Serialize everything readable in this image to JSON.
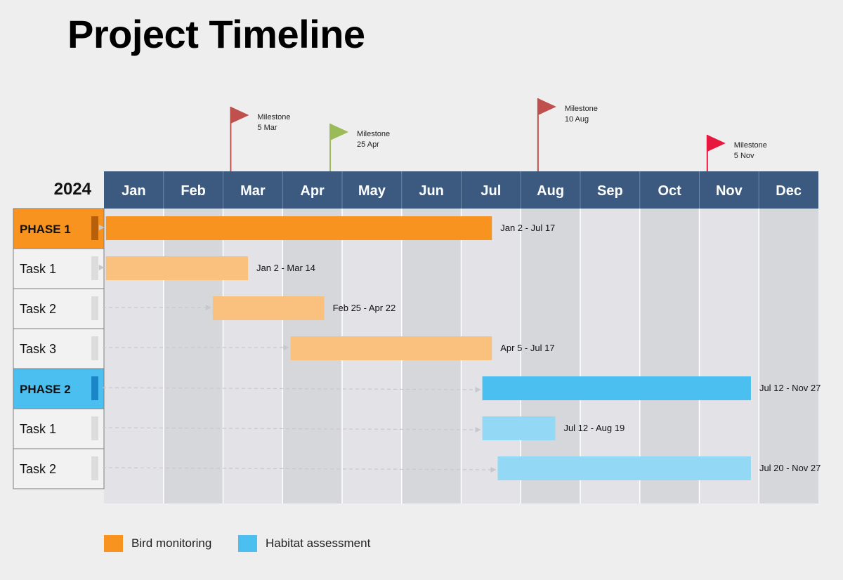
{
  "title": "Project Timeline",
  "year": "2024",
  "colors": {
    "header_bg": "#3c5a80",
    "header_text": "#ffffff",
    "phase1": "#f7931e",
    "phase1_task": "#fac07e",
    "phase1_tab": "#b85f0a",
    "phase2": "#4bbfef",
    "phase2_task": "#93d9f5",
    "phase2_tab": "#1b86c7",
    "col_light": "#e3e3e7",
    "col_dark": "#d6d7db"
  },
  "chart_data": {
    "type": "gantt",
    "title": "Project Timeline",
    "year": "2024",
    "months": [
      "Jan",
      "Feb",
      "Mar",
      "Apr",
      "May",
      "Jun",
      "Jul",
      "Aug",
      "Sep",
      "Oct",
      "Nov",
      "Dec"
    ],
    "rows": [
      {
        "label": "PHASE 1",
        "kind": "phase",
        "group": "phase1",
        "start": "2024-01-02",
        "end": "2024-07-17",
        "range_label": "Jan 2 - Jul 17"
      },
      {
        "label": "Task 1",
        "kind": "task",
        "group": "phase1",
        "start": "2024-01-02",
        "end": "2024-03-14",
        "range_label": "Jan 2 - Mar 14"
      },
      {
        "label": "Task 2",
        "kind": "task",
        "group": "phase1",
        "start": "2024-02-25",
        "end": "2024-04-22",
        "range_label": "Feb 25 - Apr 22"
      },
      {
        "label": "Task 3",
        "kind": "task",
        "group": "phase1",
        "start": "2024-04-05",
        "end": "2024-07-17",
        "range_label": "Apr 5 - Jul 17"
      },
      {
        "label": "PHASE 2",
        "kind": "phase",
        "group": "phase2",
        "start": "2024-07-12",
        "end": "2024-11-27",
        "range_label": "Jul 12 - Nov 27"
      },
      {
        "label": "Task 1",
        "kind": "task",
        "group": "phase2",
        "start": "2024-07-12",
        "end": "2024-08-19",
        "range_label": "Jul 12 - Aug 19"
      },
      {
        "label": "Task 2",
        "kind": "task",
        "group": "phase2",
        "start": "2024-07-20",
        "end": "2024-11-27",
        "range_label": "Jul 20 - Nov 27"
      }
    ],
    "milestones": [
      {
        "label": "Milestone",
        "date_label": "5 Mar",
        "date": "2024-03-05",
        "color": "#c0504d"
      },
      {
        "label": "Milestone",
        "date_label": "25 Apr",
        "date": "2024-04-25",
        "color": "#9bbb59"
      },
      {
        "label": "Milestone",
        "date_label": "10 Aug",
        "date": "2024-08-10",
        "color": "#c0504d"
      },
      {
        "label": "Milestone",
        "date_label": "5 Nov",
        "date": "2024-11-05",
        "color": "#e8173e"
      }
    ],
    "legend": [
      {
        "label": "Bird monitoring",
        "color": "#f7931e"
      },
      {
        "label": "Habitat assessment",
        "color": "#4bbfef"
      }
    ],
    "legend_position": "bottom-left"
  }
}
